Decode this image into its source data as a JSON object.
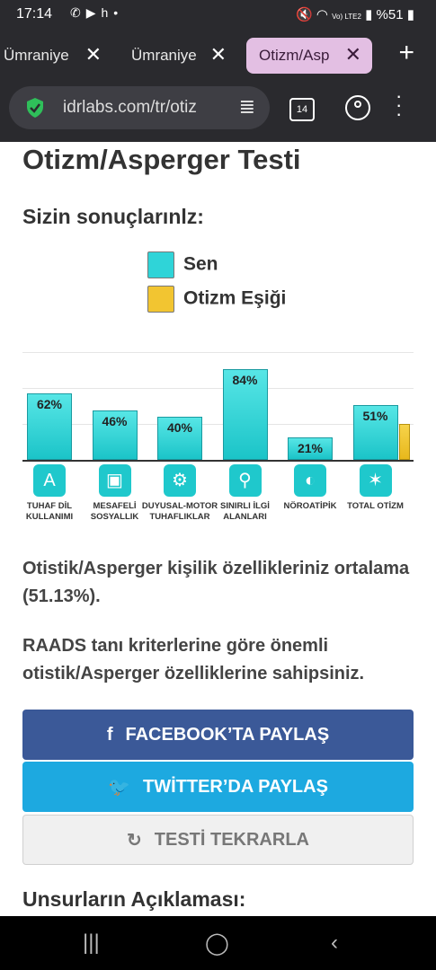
{
  "status_bar": {
    "time": "17:14",
    "notification_icons": [
      "whatsapp-icon",
      "youtube-icon",
      "h",
      "•"
    ],
    "network": "Vo) LTE2",
    "battery": "%51"
  },
  "browser": {
    "tabs": [
      {
        "label": "Ümraniye"
      },
      {
        "label": "Ümraniye"
      },
      {
        "label": "Otizm/Asp",
        "active": true
      }
    ],
    "url": "idrlabs.com/tr/otiz",
    "tab_count": "14"
  },
  "page": {
    "title": "Otizm/Asperger Testi",
    "results_heading": "Sizin sonuçlarınlz:",
    "legend": {
      "you": "Sen",
      "threshold": "Otizm Eşiği"
    },
    "summary": "Otistik/Asperger kişilik özellikleriniz ortalama (51.13%).",
    "criteria_text": "RAADS tanı kriterlerine göre önemli otistik/Asperger özelliklerine sahipsiniz.",
    "buttons": {
      "facebook": "FACEBOOK’TA PAYLAŞ",
      "twitter": "TWİTTER’DA PAYLAŞ",
      "retake": "TESTİ TEKRARLA"
    },
    "section_heading": "Unsurların Açıklaması:"
  },
  "colors": {
    "sen": "#2fd4d8",
    "threshold": "#f2c531",
    "facebook": "#3b5998",
    "twitter": "#1da9e0"
  },
  "chart_data": {
    "type": "bar",
    "categories": [
      "TUHAF DİL KULLANIMI",
      "MESAFELİ SOSYALLIK",
      "DUYUSAL-MOTOR TUHAFLIKLAR",
      "SINIRLI İLGİ ALANLARI",
      "NÖROATİPİK",
      "TOTAL OTİZM"
    ],
    "icons": [
      "translate-icon",
      "robot-icon",
      "gears-icon",
      "magnifier-icon",
      "brain-head-icon",
      "network-icon"
    ],
    "series": [
      {
        "name": "Sen",
        "values": [
          62,
          46,
          40,
          84,
          21,
          51
        ]
      },
      {
        "name": "Otizm Eşiği",
        "values": [
          null,
          null,
          null,
          null,
          null,
          33
        ]
      }
    ],
    "value_labels": [
      "62%",
      "46%",
      "40%",
      "84%",
      "21%",
      "51%"
    ],
    "ylim": [
      0,
      100
    ],
    "grid": true,
    "legend_position": "top"
  }
}
